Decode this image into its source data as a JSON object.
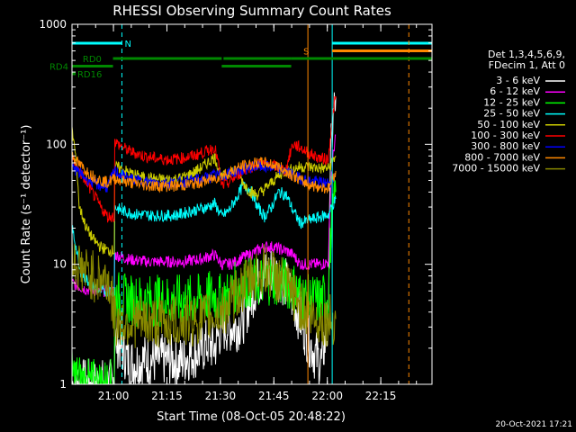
{
  "chart_data": {
    "type": "line",
    "title": "RHESSI Observing Summary Count Rates",
    "xlabel": "Start Time (08-Oct-05 20:48:22)",
    "ylabel": "Count Rate (s⁻¹ detector⁻¹)",
    "x_unit": "minutes after 20:48:22",
    "xlim": [
      0,
      101
    ],
    "ylim": [
      1,
      1000
    ],
    "yscale": "log",
    "x_ticks": [
      {
        "value": 11.63,
        "label": "21:00"
      },
      {
        "value": 26.63,
        "label": "21:15"
      },
      {
        "value": 41.63,
        "label": "21:30"
      },
      {
        "value": 56.63,
        "label": "21:45"
      },
      {
        "value": 71.63,
        "label": "22:00"
      },
      {
        "value": 86.63,
        "label": "22:15"
      }
    ],
    "y_ticks": [
      {
        "value": 1,
        "label": "1"
      },
      {
        "value": 10,
        "label": "10"
      },
      {
        "value": 100,
        "label": "100"
      },
      {
        "value": 1000,
        "label": "1000"
      }
    ],
    "legend_header": [
      "Det 1,3,4,5,6,9,",
      "FDecim 1, Att 0"
    ],
    "series": [
      {
        "name": "3 - 6 keV",
        "color": "#ffffff",
        "x": [
          0,
          2,
          4,
          6,
          8,
          10,
          12,
          14,
          16,
          18,
          20,
          22,
          24,
          26,
          28,
          30,
          32,
          34,
          36,
          38,
          40,
          42,
          44,
          46,
          48,
          50,
          52,
          54,
          56,
          58,
          60,
          62,
          64,
          66,
          68,
          70,
          72,
          74
        ],
        "y": [
          1,
          1,
          1,
          1,
          1,
          1,
          2.4,
          2,
          1.5,
          1.5,
          1.6,
          1.6,
          1.6,
          1.6,
          1.6,
          1.5,
          1.7,
          1.8,
          1.9,
          2.2,
          2,
          3,
          3,
          3,
          3.5,
          5,
          7,
          8,
          9,
          8,
          7,
          5,
          3.5,
          2.5,
          1.8,
          1.5,
          3,
          250
        ]
      },
      {
        "name": "6 - 12 keV",
        "color": "#ff00ff",
        "x": [
          0,
          2,
          4,
          6,
          8,
          10,
          12,
          14,
          16,
          18,
          20,
          22,
          24,
          26,
          28,
          30,
          32,
          34,
          36,
          38,
          40,
          42,
          44,
          46,
          48,
          50,
          52,
          54,
          56,
          58,
          60,
          62,
          64,
          66,
          68,
          70,
          72,
          74
        ],
        "y": [
          7,
          6.5,
          6.2,
          6,
          6,
          6,
          12,
          11.5,
          11,
          10.8,
          10.6,
          10.5,
          10.5,
          10.5,
          10.5,
          10.5,
          10.6,
          10.8,
          11,
          11.5,
          12,
          10,
          10,
          10.5,
          11.5,
          12,
          13,
          14,
          14,
          13.5,
          13,
          12,
          10,
          10,
          10,
          10,
          10.5,
          120
        ]
      },
      {
        "name": "12 - 25 keV",
        "color": "#00ff00",
        "x": [
          0,
          2,
          4,
          6,
          8,
          10,
          12,
          14,
          16,
          18,
          20,
          22,
          24,
          26,
          28,
          30,
          32,
          34,
          36,
          38,
          40,
          42,
          44,
          46,
          48,
          50,
          52,
          54,
          56,
          58,
          60,
          62,
          64,
          66,
          68,
          70,
          72,
          74
        ],
        "y": [
          1.2,
          1.1,
          1,
          1,
          1,
          1,
          5.5,
          5.2,
          5,
          5,
          5,
          5,
          5,
          5,
          5,
          5,
          5,
          5,
          5.1,
          5.3,
          5.5,
          5,
          5.5,
          6.5,
          7,
          7,
          7,
          7.5,
          7.5,
          7.2,
          7,
          6.5,
          5.5,
          5,
          5,
          5,
          5.5,
          40
        ]
      },
      {
        "name": "25 - 50 keV",
        "color": "#00ffff",
        "x": [
          0,
          2,
          4,
          6,
          8,
          10,
          12,
          14,
          16,
          18,
          20,
          22,
          24,
          26,
          28,
          30,
          32,
          34,
          36,
          38,
          40,
          42,
          44,
          46,
          48,
          50,
          52,
          54,
          56,
          58,
          60,
          62,
          64,
          66,
          68,
          70,
          72,
          74
        ],
        "y": [
          20,
          9,
          7.5,
          6.5,
          6,
          6,
          30,
          28,
          27,
          26,
          26,
          25.5,
          25.5,
          25.5,
          25.5,
          26,
          27,
          28,
          29,
          30,
          32,
          25,
          28,
          35,
          45,
          42,
          30,
          25,
          30,
          40,
          38,
          28,
          22,
          23,
          24,
          25,
          26,
          35
        ]
      },
      {
        "name": "50 - 100 keV",
        "color": "#cccc00",
        "x": [
          0,
          2,
          4,
          6,
          8,
          10,
          12,
          14,
          16,
          18,
          20,
          22,
          24,
          26,
          28,
          30,
          32,
          34,
          36,
          38,
          40,
          42,
          44,
          46,
          48,
          50,
          52,
          54,
          56,
          58,
          60,
          62,
          64,
          66,
          68,
          70,
          72,
          74
        ],
        "y": [
          130,
          30,
          20,
          16,
          14,
          13,
          65,
          62,
          58,
          55,
          53,
          52,
          51,
          51,
          51,
          52,
          54,
          58,
          63,
          70,
          78,
          52,
          58,
          62,
          48,
          40,
          38,
          42,
          48,
          55,
          60,
          62,
          65,
          65,
          64,
          63,
          63,
          80
        ]
      },
      {
        "name": "100 - 300 keV",
        "color": "#ff0000",
        "x": [
          0,
          2,
          4,
          6,
          8,
          10,
          12,
          14,
          16,
          18,
          20,
          22,
          24,
          26,
          28,
          30,
          32,
          34,
          36,
          38,
          40,
          42,
          44,
          46,
          48,
          50,
          52,
          54,
          56,
          58,
          60,
          62,
          64,
          66,
          68,
          70,
          72,
          74
        ],
        "y": [
          75,
          60,
          48,
          38,
          30,
          25,
          105,
          95,
          88,
          84,
          80,
          78,
          76,
          75,
          75,
          76,
          78,
          80,
          84,
          88,
          95,
          45,
          48,
          54,
          60,
          65,
          68,
          68,
          67,
          64,
          60,
          100,
          94,
          86,
          80,
          76,
          75,
          250
        ]
      },
      {
        "name": "300 - 800 keV",
        "color": "#0000ff",
        "x": [
          0,
          2,
          4,
          6,
          8,
          10,
          12,
          14,
          16,
          18,
          20,
          22,
          24,
          26,
          28,
          30,
          32,
          34,
          36,
          38,
          40,
          42,
          44,
          46,
          48,
          50,
          52,
          54,
          56,
          58,
          60,
          62,
          64,
          66,
          68,
          70,
          72,
          74
        ],
        "y": [
          65,
          58,
          52,
          48,
          45,
          44,
          60,
          55,
          52,
          50,
          49,
          48,
          48,
          48,
          48,
          48,
          49,
          50,
          51,
          53,
          55,
          55,
          57,
          60,
          62,
          64,
          65,
          65,
          64,
          62,
          60,
          55,
          52,
          50,
          49,
          48,
          47,
          55
        ]
      },
      {
        "name": "800 - 7000 keV",
        "color": "#ff8800",
        "x": [
          0,
          2,
          4,
          6,
          8,
          10,
          12,
          14,
          16,
          18,
          20,
          22,
          24,
          26,
          28,
          30,
          32,
          34,
          36,
          38,
          40,
          42,
          44,
          46,
          48,
          50,
          52,
          54,
          56,
          58,
          60,
          62,
          64,
          66,
          68,
          70,
          72,
          74
        ],
        "y": [
          80,
          68,
          60,
          54,
          50,
          48,
          52,
          50,
          48,
          47,
          46,
          45,
          45,
          45,
          45,
          45,
          46,
          47,
          48,
          50,
          52,
          55,
          58,
          62,
          66,
          68,
          70,
          70,
          68,
          65,
          60,
          55,
          50,
          47,
          45,
          44,
          43,
          60
        ]
      },
      {
        "name": "7000 - 15000 keV",
        "color": "#888800",
        "x": [
          0,
          2,
          4,
          6,
          8,
          10,
          12,
          14,
          16,
          18,
          20,
          22,
          24,
          26,
          28,
          30,
          32,
          34,
          36,
          38,
          40,
          42,
          44,
          46,
          48,
          50,
          52,
          54,
          56,
          58,
          60,
          62,
          64,
          66,
          68,
          70,
          72,
          74
        ],
        "y": [
          11,
          9.5,
          8.5,
          8,
          7.5,
          7.5,
          3.4,
          3.3,
          3.3,
          3.3,
          3.3,
          3.3,
          3.3,
          3.3,
          3.3,
          3.3,
          3.3,
          3.4,
          3.5,
          3.6,
          3.8,
          4,
          4.5,
          5.5,
          6.5,
          7.5,
          8.5,
          9,
          8.5,
          7.5,
          6.5,
          5.5,
          4.5,
          4,
          3.5,
          3.4,
          3.4,
          3.5
        ]
      }
    ],
    "status_bars": [
      {
        "label": "N",
        "color": "#00ffff",
        "level": 0.0,
        "segments": [
          [
            0,
            14
          ]
        ],
        "dashed_line_x": 14
      },
      {
        "label": "",
        "color": "#00ffff",
        "level": 0.0,
        "segments": [
          [
            73,
            101
          ]
        ],
        "solid_line_x": 73
      },
      {
        "label": "S",
        "color": "#ff8800",
        "level": 1.0,
        "segments": [
          [
            73,
            101
          ]
        ],
        "solid_line_x": 73
      },
      {
        "label": "",
        "color": "#ff8800",
        "level": 1.0,
        "segments": [],
        "dashed_line_x": 94.5
      },
      {
        "label": "RD0",
        "color": "#008800",
        "level": 2.0,
        "segments": [
          [
            11.5,
            42
          ],
          [
            42.5,
            61.5
          ],
          [
            61.5,
            101
          ]
        ]
      },
      {
        "label": "RD4",
        "color": "#008800",
        "level": 3.0,
        "segments": [
          [
            0,
            11.5
          ],
          [
            42,
            61.5
          ]
        ]
      },
      {
        "label": "RD16",
        "color": "#008800",
        "level": 4.0,
        "segments": [
          [
            0,
            1
          ]
        ]
      }
    ],
    "footer_date": "20-Oct-2021 17:21"
  }
}
